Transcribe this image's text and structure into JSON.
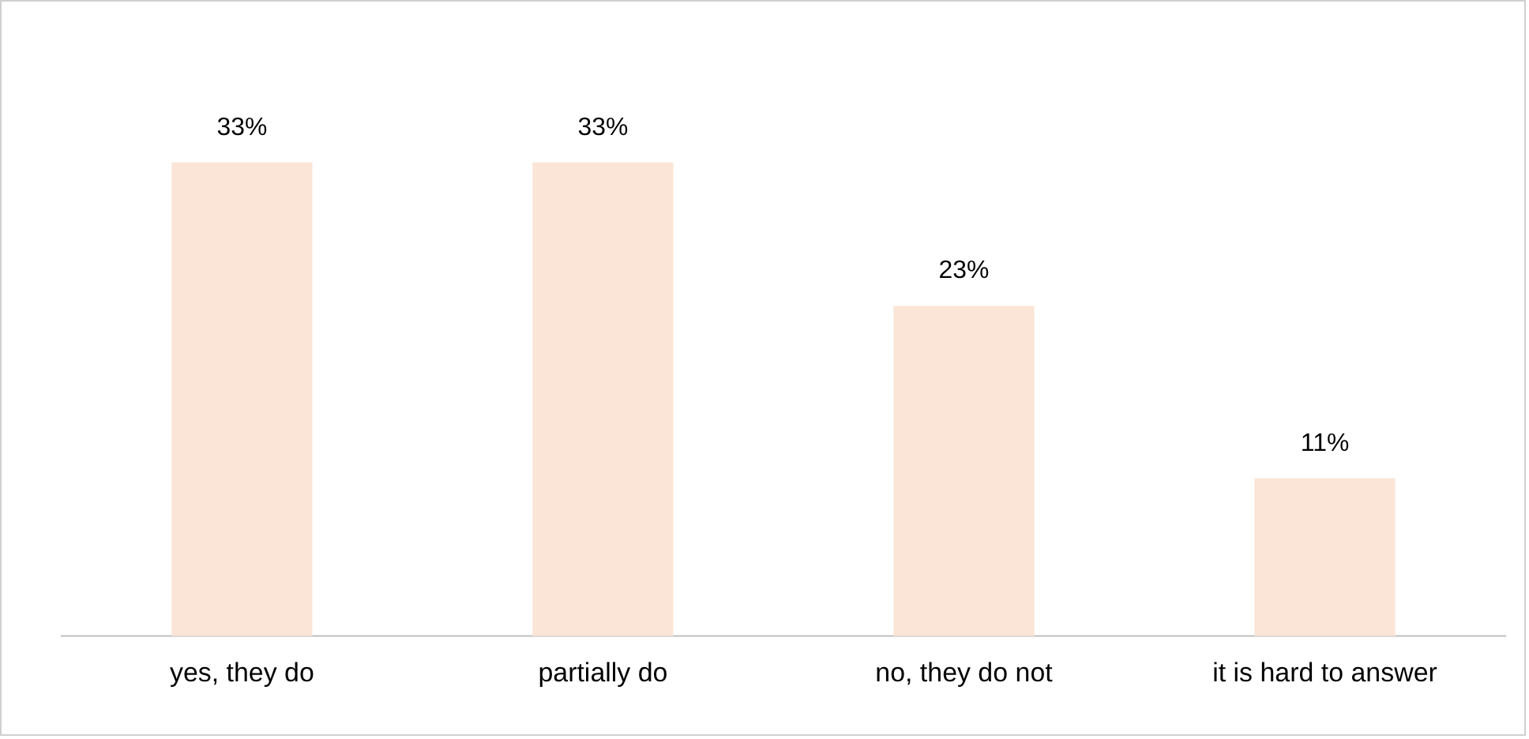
{
  "chart_data": {
    "type": "bar",
    "categories": [
      "yes, they do",
      "partially do",
      "no, they do not",
      "it is hard to answer"
    ],
    "values": [
      33,
      33,
      23,
      11
    ],
    "value_labels": [
      "33%",
      "33%",
      "23%",
      "11%"
    ],
    "color": "#fbe5d6",
    "grid": false,
    "legend": false
  }
}
